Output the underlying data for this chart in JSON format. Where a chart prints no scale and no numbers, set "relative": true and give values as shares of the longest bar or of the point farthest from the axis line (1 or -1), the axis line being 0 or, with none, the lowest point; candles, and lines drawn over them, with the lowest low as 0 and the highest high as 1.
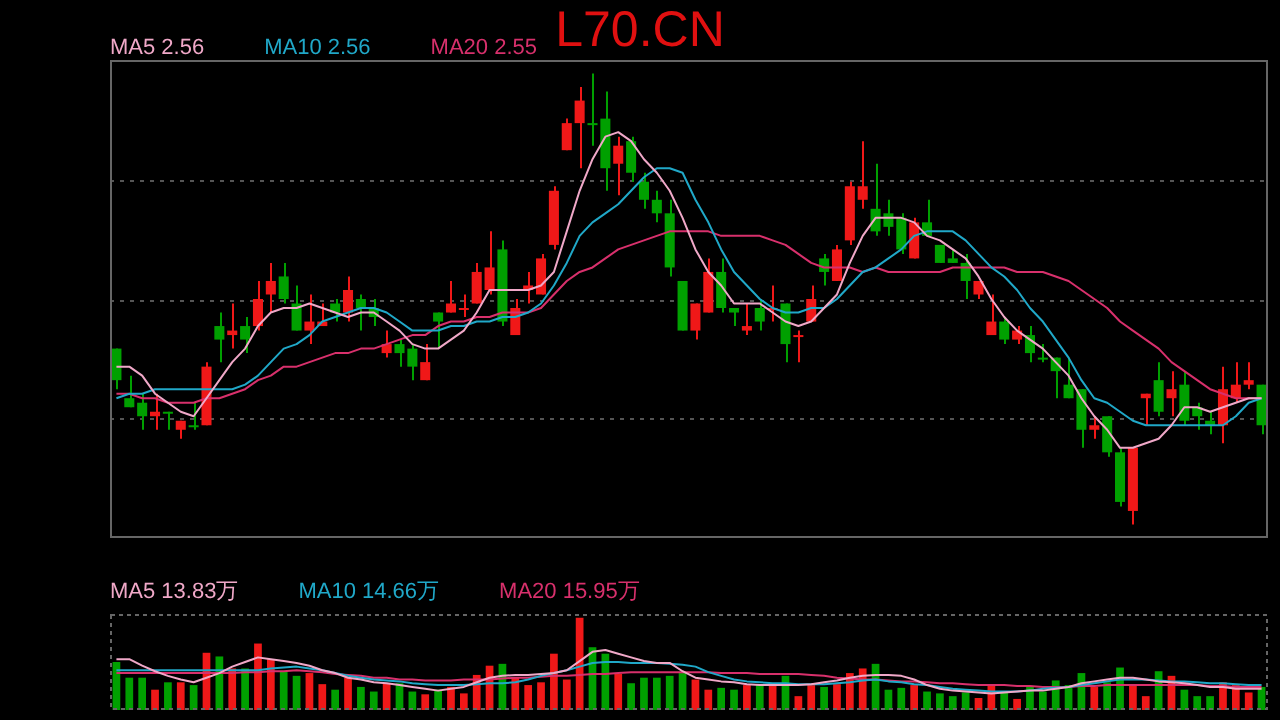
{
  "chart_data": [
    {
      "type": "candlestick",
      "title": "L70.CN",
      "relative": true,
      "grid": "y",
      "legend": "top left",
      "tick_labels": false,
      "marker": "none",
      "categories": [
        null,
        null,
        null,
        null,
        null,
        null,
        null,
        null,
        null,
        null,
        null,
        null,
        null,
        null,
        null,
        null,
        null,
        null,
        null,
        null,
        null,
        null,
        null,
        null,
        null,
        null,
        null,
        null,
        null,
        null,
        null,
        null,
        null,
        null,
        null,
        null,
        null,
        null,
        null,
        null,
        null,
        null,
        null,
        null,
        null,
        null,
        null,
        null,
        null,
        null,
        null,
        null,
        null,
        null,
        null,
        null,
        null,
        null,
        null,
        null,
        null,
        null,
        null,
        null,
        null,
        null,
        null,
        null,
        null,
        null,
        null,
        null,
        null,
        null,
        null,
        null,
        null,
        null,
        null,
        null,
        null,
        null,
        null,
        null,
        null,
        null,
        null,
        null,
        null,
        null
      ],
      "ohlc": [
        [
          0.39,
          0.39,
          0.3,
          0.32
        ],
        [
          0.28,
          0.33,
          0.26,
          0.26
        ],
        [
          0.27,
          0.29,
          0.21,
          0.24
        ],
        [
          0.24,
          0.29,
          0.21,
          0.25
        ],
        [
          0.25,
          0.25,
          0.21,
          0.25
        ],
        [
          0.21,
          0.23,
          0.19,
          0.23
        ],
        [
          0.22,
          0.27,
          0.21,
          0.22
        ],
        [
          0.22,
          0.36,
          0.22,
          0.35
        ],
        [
          0.44,
          0.47,
          0.36,
          0.41
        ],
        [
          0.42,
          0.49,
          0.39,
          0.43
        ],
        [
          0.44,
          0.46,
          0.38,
          0.41
        ],
        [
          0.44,
          0.54,
          0.43,
          0.5
        ],
        [
          0.51,
          0.58,
          0.47,
          0.54
        ],
        [
          0.55,
          0.58,
          0.49,
          0.5
        ],
        [
          0.49,
          0.53,
          0.43,
          0.43
        ],
        [
          0.43,
          0.51,
          0.4,
          0.45
        ],
        [
          0.44,
          0.49,
          0.44,
          0.45
        ],
        [
          0.49,
          0.5,
          0.45,
          0.47
        ],
        [
          0.47,
          0.55,
          0.45,
          0.52
        ],
        [
          0.5,
          0.51,
          0.43,
          0.48
        ],
        [
          0.48,
          0.5,
          0.44,
          0.46
        ],
        [
          0.38,
          0.43,
          0.37,
          0.4
        ],
        [
          0.4,
          0.41,
          0.35,
          0.38
        ],
        [
          0.39,
          0.4,
          0.32,
          0.35
        ],
        [
          0.32,
          0.4,
          0.32,
          0.36
        ],
        [
          0.47,
          0.47,
          0.39,
          0.45
        ],
        [
          0.47,
          0.54,
          0.47,
          0.49
        ],
        [
          0.48,
          0.51,
          0.46,
          0.48
        ],
        [
          0.49,
          0.58,
          0.49,
          0.56
        ],
        [
          0.52,
          0.65,
          0.51,
          0.57
        ],
        [
          0.61,
          0.63,
          0.44,
          0.45
        ],
        [
          0.42,
          0.5,
          0.42,
          0.48
        ],
        [
          0.52,
          0.56,
          0.49,
          0.53
        ],
        [
          0.51,
          0.6,
          0.51,
          0.59
        ],
        [
          0.62,
          0.75,
          0.61,
          0.74
        ],
        [
          0.83,
          0.9,
          0.83,
          0.89
        ],
        [
          0.89,
          0.97,
          0.79,
          0.94
        ],
        [
          0.89,
          1.0,
          0.84,
          0.89
        ],
        [
          0.9,
          0.96,
          0.74,
          0.79
        ],
        [
          0.8,
          0.86,
          0.73,
          0.84
        ],
        [
          0.85,
          0.86,
          0.76,
          0.78
        ],
        [
          0.76,
          0.78,
          0.7,
          0.72
        ],
        [
          0.72,
          0.74,
          0.67,
          0.69
        ],
        [
          0.69,
          0.72,
          0.55,
          0.57
        ],
        [
          0.54,
          0.54,
          0.43,
          0.43
        ],
        [
          0.43,
          0.49,
          0.41,
          0.49
        ],
        [
          0.47,
          0.59,
          0.47,
          0.56
        ],
        [
          0.56,
          0.59,
          0.47,
          0.48
        ],
        [
          0.48,
          0.48,
          0.44,
          0.47
        ],
        [
          0.43,
          0.49,
          0.42,
          0.44
        ],
        [
          0.48,
          0.5,
          0.43,
          0.45
        ],
        [
          0.48,
          0.53,
          0.45,
          0.48
        ],
        [
          0.49,
          0.49,
          0.36,
          0.4
        ],
        [
          0.42,
          0.43,
          0.36,
          0.42
        ],
        [
          0.45,
          0.53,
          0.45,
          0.5
        ],
        [
          0.59,
          0.6,
          0.53,
          0.56
        ],
        [
          0.54,
          0.62,
          0.54,
          0.61
        ],
        [
          0.63,
          0.76,
          0.62,
          0.75
        ],
        [
          0.72,
          0.85,
          0.7,
          0.75
        ],
        [
          0.7,
          0.8,
          0.64,
          0.65
        ],
        [
          0.69,
          0.72,
          0.64,
          0.66
        ],
        [
          0.68,
          0.69,
          0.6,
          0.61
        ],
        [
          0.59,
          0.68,
          0.59,
          0.67
        ],
        [
          0.67,
          0.72,
          0.64,
          0.64
        ],
        [
          0.62,
          0.62,
          0.58,
          0.58
        ],
        [
          0.59,
          0.61,
          0.58,
          0.58
        ],
        [
          0.58,
          0.6,
          0.5,
          0.54
        ],
        [
          0.51,
          0.54,
          0.5,
          0.54
        ],
        [
          0.42,
          0.51,
          0.42,
          0.45
        ],
        [
          0.45,
          0.46,
          0.4,
          0.41
        ],
        [
          0.41,
          0.44,
          0.4,
          0.43
        ],
        [
          0.42,
          0.44,
          0.36,
          0.38
        ],
        [
          0.37,
          0.4,
          0.36,
          0.37
        ],
        [
          0.37,
          0.37,
          0.28,
          0.34
        ],
        [
          0.31,
          0.37,
          0.28,
          0.28
        ],
        [
          0.3,
          0.3,
          0.17,
          0.21
        ],
        [
          0.21,
          0.24,
          0.19,
          0.22
        ],
        [
          0.24,
          0.24,
          0.15,
          0.16
        ],
        [
          0.16,
          0.17,
          0.04,
          0.05
        ],
        [
          0.03,
          0.17,
          0,
          0.17
        ],
        [
          0.28,
          0.29,
          0.22,
          0.29
        ],
        [
          0.32,
          0.36,
          0.24,
          0.25
        ],
        [
          0.28,
          0.34,
          0.24,
          0.3
        ],
        [
          0.31,
          0.34,
          0.22,
          0.23
        ],
        [
          0.26,
          0.27,
          0.21,
          0.24
        ],
        [
          0.23,
          0.25,
          0.2,
          0.22
        ],
        [
          0.22,
          0.35,
          0.18,
          0.3
        ],
        [
          0.28,
          0.36,
          0.27,
          0.31
        ],
        [
          0.31,
          0.36,
          0.3,
          0.32
        ],
        [
          0.31,
          0.31,
          0.2,
          0.22
        ]
      ],
      "colors": [
        "#00a000",
        "#00a000",
        "#00a000",
        "#f01818",
        "#00a000",
        "#f01818",
        "#00a000",
        "#f01818",
        "#00a000",
        "#f01818",
        "#00a000",
        "#f01818",
        "#f01818",
        "#00a000",
        "#00a000",
        "#f01818",
        "#f01818",
        "#00a000",
        "#f01818",
        "#00a000",
        "#00a000",
        "#f01818",
        "#00a000",
        "#00a000",
        "#f01818",
        "#00a000",
        "#f01818",
        "#f01818",
        "#f01818",
        "#f01818",
        "#00a000",
        "#f01818",
        "#f01818",
        "#f01818",
        "#f01818",
        "#f01818",
        "#f01818",
        "#00a000",
        "#00a000",
        "#f01818",
        "#00a000",
        "#00a000",
        "#00a000",
        "#00a000",
        "#00a000",
        "#f01818",
        "#f01818",
        "#00a000",
        "#00a000",
        "#f01818",
        "#00a000",
        "#f01818",
        "#00a000",
        "#f01818",
        "#f01818",
        "#00a000",
        "#f01818",
        "#f01818",
        "#f01818",
        "#00a000",
        "#00a000",
        "#00a000",
        "#f01818",
        "#00a000",
        "#00a000",
        "#00a000",
        "#00a000",
        "#f01818",
        "#f01818",
        "#00a000",
        "#f01818",
        "#00a000",
        "#00a000",
        "#00a000",
        "#00a000",
        "#00a000",
        "#f01818",
        "#00a000",
        "#00a000",
        "#f01818",
        "#f01818",
        "#00a000",
        "#f01818",
        "#00a000",
        "#00a000",
        "#00a000",
        "#f01818",
        "#f01818",
        "#f01818",
        "#00a000"
      ],
      "series": [
        {
          "type": "line",
          "name": "MA5 2.56",
          "color": "#f0a8c8",
          "values": [
            0.35,
            0.35,
            0.33,
            0.29,
            0.27,
            0.25,
            0.24,
            0.28,
            0.32,
            0.36,
            0.39,
            0.44,
            0.47,
            0.48,
            0.48,
            0.49,
            0.48,
            0.47,
            0.46,
            0.47,
            0.47,
            0.45,
            0.43,
            0.4,
            0.39,
            0.39,
            0.41,
            0.43,
            0.47,
            0.52,
            0.52,
            0.52,
            0.52,
            0.53,
            0.56,
            0.65,
            0.74,
            0.81,
            0.86,
            0.87,
            0.85,
            0.81,
            0.78,
            0.74,
            0.68,
            0.61,
            0.56,
            0.53,
            0.49,
            0.49,
            0.49,
            0.47,
            0.45,
            0.44,
            0.45,
            0.48,
            0.51,
            0.58,
            0.64,
            0.68,
            0.68,
            0.68,
            0.67,
            0.64,
            0.63,
            0.61,
            0.59,
            0.55,
            0.5,
            0.46,
            0.43,
            0.41,
            0.39,
            0.36,
            0.33,
            0.28,
            0.24,
            0.21,
            0.17,
            0.17,
            0.18,
            0.19,
            0.22,
            0.26,
            0.26,
            0.25,
            0.26,
            0.27,
            0.28,
            0.28
          ]
        },
        {
          "type": "line",
          "name": "MA10 2.56",
          "color": "#20a8c8",
          "values": [
            0.28,
            0.29,
            0.29,
            0.3,
            0.3,
            0.3,
            0.3,
            0.3,
            0.3,
            0.3,
            0.31,
            0.33,
            0.36,
            0.39,
            0.4,
            0.42,
            0.45,
            0.46,
            0.47,
            0.48,
            0.48,
            0.47,
            0.45,
            0.43,
            0.43,
            0.43,
            0.44,
            0.44,
            0.45,
            0.45,
            0.46,
            0.46,
            0.47,
            0.49,
            0.53,
            0.58,
            0.64,
            0.67,
            0.69,
            0.71,
            0.74,
            0.77,
            0.79,
            0.79,
            0.78,
            0.72,
            0.67,
            0.61,
            0.56,
            0.53,
            0.5,
            0.48,
            0.47,
            0.47,
            0.48,
            0.48,
            0.5,
            0.53,
            0.56,
            0.57,
            0.59,
            0.61,
            0.64,
            0.65,
            0.65,
            0.65,
            0.63,
            0.6,
            0.57,
            0.55,
            0.52,
            0.48,
            0.45,
            0.41,
            0.37,
            0.32,
            0.28,
            0.27,
            0.25,
            0.23,
            0.22,
            0.22,
            0.22,
            0.22,
            0.22,
            0.22,
            0.22,
            0.24,
            0.27,
            0.28
          ]
        },
        {
          "type": "line",
          "name": "MA20 2.55",
          "color": "#d8306c",
          "values": [
            0.29,
            0.29,
            0.28,
            0.28,
            0.27,
            0.27,
            0.27,
            0.28,
            0.28,
            0.29,
            0.3,
            0.32,
            0.33,
            0.35,
            0.35,
            0.36,
            0.37,
            0.38,
            0.38,
            0.39,
            0.39,
            0.4,
            0.41,
            0.42,
            0.42,
            0.44,
            0.45,
            0.45,
            0.46,
            0.46,
            0.47,
            0.47,
            0.47,
            0.48,
            0.51,
            0.54,
            0.56,
            0.57,
            0.59,
            0.61,
            0.62,
            0.63,
            0.64,
            0.65,
            0.65,
            0.65,
            0.65,
            0.64,
            0.64,
            0.64,
            0.64,
            0.63,
            0.62,
            0.6,
            0.58,
            0.57,
            0.57,
            0.57,
            0.56,
            0.57,
            0.56,
            0.56,
            0.56,
            0.56,
            0.56,
            0.57,
            0.57,
            0.57,
            0.57,
            0.57,
            0.56,
            0.56,
            0.56,
            0.55,
            0.54,
            0.52,
            0.5,
            0.48,
            0.45,
            0.43,
            0.41,
            0.39,
            0.36,
            0.34,
            0.32,
            0.3,
            0.29,
            0.28,
            0.28,
            0.28
          ]
        }
      ]
    },
    {
      "type": "bar",
      "relative": true,
      "legend": "top left",
      "tick_labels": false,
      "marker": "none",
      "categories": [
        null,
        null,
        null,
        null,
        null,
        null,
        null,
        null,
        null,
        null,
        null,
        null,
        null,
        null,
        null,
        null,
        null,
        null,
        null,
        null,
        null,
        null,
        null,
        null,
        null,
        null,
        null,
        null,
        null,
        null,
        null,
        null,
        null,
        null,
        null,
        null,
        null,
        null,
        null,
        null,
        null,
        null,
        null,
        null,
        null,
        null,
        null,
        null,
        null,
        null,
        null,
        null,
        null,
        null,
        null,
        null,
        null,
        null,
        null,
        null,
        null,
        null,
        null,
        null,
        null,
        null,
        null,
        null,
        null,
        null,
        null,
        null,
        null,
        null,
        null,
        null,
        null,
        null,
        null,
        null,
        null,
        null,
        null,
        null,
        null,
        null,
        null,
        null,
        null,
        null
      ],
      "series": [
        {
          "type": "bar",
          "values": [
            0.52,
            0.35,
            0.35,
            0.22,
            0.3,
            0.3,
            0.27,
            0.62,
            0.58,
            0.45,
            0.45,
            0.72,
            0.55,
            0.42,
            0.37,
            0.4,
            0.28,
            0.22,
            0.35,
            0.25,
            0.2,
            0.29,
            0.29,
            0.2,
            0.17,
            0.22,
            0.25,
            0.18,
            0.38,
            0.48,
            0.5,
            0.35,
            0.27,
            0.3,
            0.61,
            0.33,
            1,
            0.68,
            0.61,
            0.39,
            0.29,
            0.35,
            0.35,
            0.37,
            0.4,
            0.33,
            0.22,
            0.24,
            0.22,
            0.27,
            0.28,
            0.27,
            0.37,
            0.15,
            0.27,
            0.25,
            0.28,
            0.4,
            0.45,
            0.5,
            0.22,
            0.24,
            0.27,
            0.2,
            0.18,
            0.15,
            0.19,
            0.13,
            0.28,
            0.2,
            0.12,
            0.25,
            0.2,
            0.32,
            0.27,
            0.4,
            0.25,
            0.3,
            0.46,
            0.28,
            0.15,
            0.42,
            0.37,
            0.22,
            0.15,
            0.15,
            0.3,
            0.27,
            0.19,
            0.25
          ],
          "colors": [
            "#00a000",
            "#00a000",
            "#00a000",
            "#f01818",
            "#00a000",
            "#f01818",
            "#00a000",
            "#f01818",
            "#00a000",
            "#f01818",
            "#00a000",
            "#f01818",
            "#f01818",
            "#00a000",
            "#00a000",
            "#f01818",
            "#f01818",
            "#00a000",
            "#f01818",
            "#00a000",
            "#00a000",
            "#f01818",
            "#00a000",
            "#00a000",
            "#f01818",
            "#00a000",
            "#f01818",
            "#f01818",
            "#f01818",
            "#f01818",
            "#00a000",
            "#f01818",
            "#f01818",
            "#f01818",
            "#f01818",
            "#f01818",
            "#f01818",
            "#00a000",
            "#00a000",
            "#f01818",
            "#00a000",
            "#00a000",
            "#00a000",
            "#00a000",
            "#00a000",
            "#f01818",
            "#f01818",
            "#00a000",
            "#00a000",
            "#f01818",
            "#00a000",
            "#f01818",
            "#00a000",
            "#f01818",
            "#f01818",
            "#00a000",
            "#f01818",
            "#f01818",
            "#f01818",
            "#00a000",
            "#00a000",
            "#00a000",
            "#f01818",
            "#00a000",
            "#00a000",
            "#00a000",
            "#00a000",
            "#f01818",
            "#f01818",
            "#00a000",
            "#f01818",
            "#00a000",
            "#00a000",
            "#00a000",
            "#00a000",
            "#00a000",
            "#f01818",
            "#00a000",
            "#00a000",
            "#f01818",
            "#f01818",
            "#00a000",
            "#f01818",
            "#00a000",
            "#00a000",
            "#00a000",
            "#f01818",
            "#f01818",
            "#f01818",
            "#00a000"
          ]
        },
        {
          "type": "line",
          "name": "MA5 13.83万",
          "color": "#f0a8c8",
          "values": [
            0.55,
            0.55,
            0.48,
            0.42,
            0.37,
            0.33,
            0.3,
            0.35,
            0.4,
            0.47,
            0.52,
            0.57,
            0.55,
            0.53,
            0.51,
            0.48,
            0.43,
            0.4,
            0.35,
            0.33,
            0.3,
            0.29,
            0.27,
            0.25,
            0.23,
            0.21,
            0.23,
            0.25,
            0.3,
            0.35,
            0.37,
            0.38,
            0.38,
            0.39,
            0.4,
            0.43,
            0.53,
            0.63,
            0.65,
            0.61,
            0.57,
            0.53,
            0.51,
            0.51,
            0.42,
            0.35,
            0.33,
            0.31,
            0.3,
            0.28,
            0.27,
            0.27,
            0.27,
            0.27,
            0.28,
            0.3,
            0.32,
            0.35,
            0.37,
            0.38,
            0.38,
            0.37,
            0.33,
            0.27,
            0.23,
            0.21,
            0.2,
            0.19,
            0.18,
            0.19,
            0.2,
            0.21,
            0.21,
            0.23,
            0.25,
            0.29,
            0.31,
            0.33,
            0.35,
            0.35,
            0.33,
            0.31,
            0.3,
            0.29,
            0.27,
            0.25,
            0.25,
            0.23,
            0.23,
            0.23
          ]
        },
        {
          "type": "line",
          "name": "MA10 14.66万",
          "color": "#20a8c8",
          "values": [
            0.43,
            0.43,
            0.43,
            0.43,
            0.43,
            0.43,
            0.43,
            0.43,
            0.43,
            0.43,
            0.43,
            0.43,
            0.45,
            0.46,
            0.47,
            0.45,
            0.43,
            0.4,
            0.37,
            0.35,
            0.33,
            0.32,
            0.31,
            0.29,
            0.28,
            0.27,
            0.27,
            0.27,
            0.28,
            0.29,
            0.29,
            0.3,
            0.33,
            0.37,
            0.4,
            0.43,
            0.47,
            0.51,
            0.52,
            0.52,
            0.51,
            0.51,
            0.51,
            0.5,
            0.49,
            0.47,
            0.41,
            0.37,
            0.33,
            0.31,
            0.3,
            0.29,
            0.29,
            0.28,
            0.28,
            0.28,
            0.29,
            0.3,
            0.32,
            0.33,
            0.31,
            0.3,
            0.28,
            0.27,
            0.25,
            0.23,
            0.22,
            0.21,
            0.2,
            0.2,
            0.2,
            0.21,
            0.23,
            0.24,
            0.25,
            0.27,
            0.29,
            0.31,
            0.33,
            0.33,
            0.33,
            0.32,
            0.31,
            0.31,
            0.3,
            0.29,
            0.29,
            0.28,
            0.27,
            0.27
          ]
        },
        {
          "type": "line",
          "name": "MA20 15.95万",
          "color": "#d8306c",
          "values": [
            0.4,
            0.4,
            0.4,
            0.4,
            0.4,
            0.4,
            0.4,
            0.4,
            0.4,
            0.4,
            0.41,
            0.41,
            0.42,
            0.42,
            0.43,
            0.42,
            0.41,
            0.39,
            0.38,
            0.37,
            0.35,
            0.35,
            0.33,
            0.33,
            0.32,
            0.32,
            0.32,
            0.33,
            0.33,
            0.33,
            0.34,
            0.35,
            0.35,
            0.36,
            0.37,
            0.37,
            0.38,
            0.39,
            0.39,
            0.4,
            0.41,
            0.41,
            0.41,
            0.41,
            0.41,
            0.41,
            0.41,
            0.4,
            0.4,
            0.4,
            0.39,
            0.39,
            0.39,
            0.39,
            0.38,
            0.37,
            0.35,
            0.34,
            0.33,
            0.33,
            0.32,
            0.31,
            0.31,
            0.3,
            0.29,
            0.29,
            0.28,
            0.27,
            0.27,
            0.27,
            0.26,
            0.26,
            0.25,
            0.25,
            0.25,
            0.26,
            0.26,
            0.27,
            0.27,
            0.27,
            0.27,
            0.27,
            0.27,
            0.27,
            0.27,
            0.26,
            0.26,
            0.25,
            0.25,
            0.25
          ]
        }
      ]
    }
  ]
}
